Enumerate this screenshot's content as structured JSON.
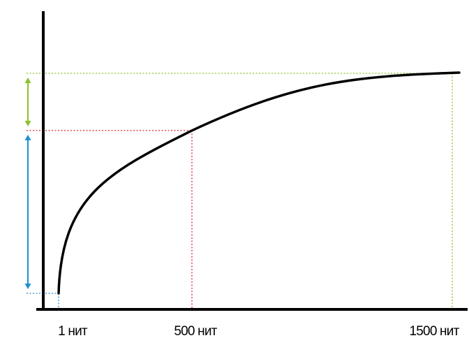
{
  "chart_data": {
    "type": "line",
    "title": "",
    "xlabel": "",
    "ylabel": "",
    "x_ticks": [
      {
        "value": 1,
        "label": "1 нит"
      },
      {
        "value": 500,
        "label": "500 нит"
      },
      {
        "value": 1500,
        "label": "1500 нит"
      }
    ],
    "xlim": [
      1,
      1500
    ],
    "series": [
      {
        "curve": "concave-increasing",
        "color": "#000000",
        "points": [
          {
            "x": 1,
            "y": 0.0
          },
          {
            "x": 500,
            "y": 0.74
          },
          {
            "x": 1500,
            "y": 1.0
          }
        ]
      }
    ],
    "guide_colors": {
      "low": "#1f8fd0",
      "mid": "#e0212c",
      "high": "#8fc12a"
    },
    "ranges": [
      {
        "from": 0.0,
        "to": 0.74,
        "color": "#1f8fd0"
      },
      {
        "from": 0.74,
        "to": 1.0,
        "color": "#8fc12a"
      }
    ]
  }
}
